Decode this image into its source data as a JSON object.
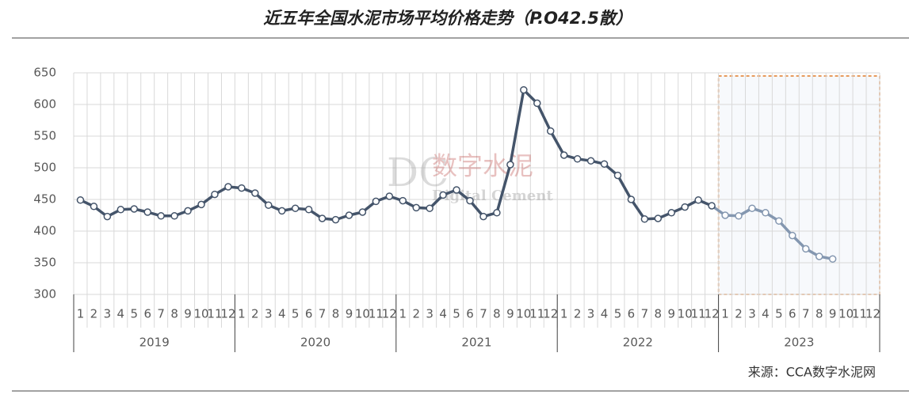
{
  "chart_data": {
    "type": "line",
    "title": "近五年全国水泥市场平均价格走势（P.O42.5散）",
    "source": "来源：CCA数字水泥网",
    "watermark": {
      "mark": "DC",
      "name": "数字水泥",
      "subtitle": "Digital Cement"
    },
    "categories": [
      "1",
      "2",
      "3",
      "4",
      "5",
      "6",
      "7",
      "8",
      "9",
      "10",
      "11",
      "12",
      "1",
      "2",
      "3",
      "4",
      "5",
      "6",
      "7",
      "8",
      "9",
      "10",
      "11",
      "12",
      "1",
      "2",
      "3",
      "4",
      "5",
      "6",
      "7",
      "8",
      "9",
      "10",
      "11",
      "12",
      "1",
      "2",
      "3",
      "4",
      "5",
      "6",
      "7",
      "8",
      "9",
      "10",
      "11",
      "12",
      "1",
      "2",
      "3",
      "4",
      "5",
      "6",
      "7",
      "8",
      "9",
      "10",
      "11",
      "12"
    ],
    "groups": [
      {
        "label": "2019",
        "size": 12
      },
      {
        "label": "2020",
        "size": 12
      },
      {
        "label": "2021",
        "size": 12
      },
      {
        "label": "2022",
        "size": 12
      },
      {
        "label": "2023",
        "size": 12,
        "highlight": true
      }
    ],
    "series": [
      {
        "color": "#44546a",
        "highlight_color": "#8497b0",
        "values": [
          449,
          439,
          423,
          434,
          435,
          430,
          424,
          424,
          432,
          442,
          458,
          470,
          468,
          460,
          441,
          432,
          436,
          434,
          420,
          418,
          425,
          430,
          447,
          455,
          448,
          437,
          436,
          457,
          465,
          448,
          423,
          429,
          505,
          623,
          602,
          558,
          520,
          514,
          511,
          506,
          488,
          450,
          419,
          420,
          429,
          438,
          449,
          440,
          425,
          424,
          436,
          429,
          416,
          393,
          372,
          360,
          356,
          null,
          null,
          null
        ]
      }
    ],
    "ylim": [
      300,
      650
    ],
    "yticks": [
      300,
      350,
      400,
      450,
      500,
      550,
      600,
      650
    ],
    "grid": true
  }
}
